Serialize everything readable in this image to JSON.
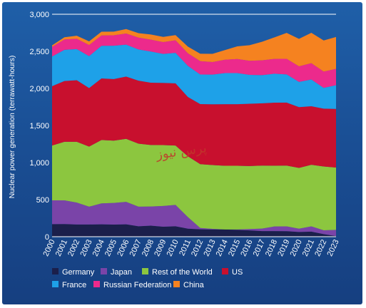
{
  "chart_data": {
    "type": "area",
    "stacked": true,
    "title": "",
    "xlabel": "",
    "ylabel": "Nuclear power generation (terrawatt-hours)",
    "ylim": [
      0,
      3000
    ],
    "y_ticks": [
      "0",
      "500",
      "1,000",
      "1,500",
      "2,000",
      "2,500",
      "3,000"
    ],
    "x": [
      "2000",
      "2001",
      "2002",
      "2003",
      "2004",
      "2005",
      "2006",
      "2007",
      "2008",
      "2009",
      "2010",
      "2011",
      "2012",
      "2013",
      "2014",
      "2015",
      "2016",
      "2017",
      "2018",
      "2019",
      "2020",
      "2021",
      "2022",
      "2023"
    ],
    "grid": false,
    "legend_position": "bottom",
    "series": [
      {
        "name": "Germany",
        "color": "#1b1f4b",
        "values": [
          170,
          171,
          165,
          165,
          167,
          163,
          167,
          141,
          149,
          135,
          141,
          108,
          100,
          97,
          97,
          92,
          85,
          76,
          76,
          75,
          64,
          69,
          35,
          8
        ]
      },
      {
        "name": "Japan",
        "color": "#7a44a8",
        "values": [
          320,
          319,
          295,
          240,
          282,
          293,
          303,
          264,
          258,
          280,
          288,
          156,
          18,
          9,
          0,
          5,
          18,
          33,
          62,
          64,
          44,
          71,
          52,
          85
        ]
      },
      {
        "name": "Rest of the World",
        "color": "#8cc63f",
        "values": [
          740,
          790,
          820,
          810,
          855,
          840,
          850,
          850,
          830,
          820,
          800,
          820,
          860,
          860,
          860,
          860,
          850,
          850,
          820,
          820,
          820,
          830,
          860,
          840
        ]
      },
      {
        "name": "US",
        "color": "#c8102e",
        "values": [
          800,
          820,
          830,
          790,
          830,
          830,
          840,
          850,
          840,
          840,
          840,
          800,
          810,
          820,
          830,
          830,
          840,
          840,
          850,
          850,
          820,
          790,
          780,
          790
        ]
      },
      {
        "name": "France",
        "color": "#1ea1e8",
        "values": [
          400,
          420,
          420,
          430,
          440,
          450,
          430,
          420,
          420,
          390,
          410,
          420,
          400,
          400,
          420,
          420,
          390,
          380,
          390,
          380,
          340,
          360,
          280,
          320
        ]
      },
      {
        "name": "Russian Federation",
        "color": "#ec2a8c",
        "values": [
          130,
          140,
          140,
          150,
          140,
          140,
          150,
          160,
          160,
          160,
          170,
          170,
          180,
          170,
          180,
          190,
          190,
          200,
          200,
          210,
          210,
          220,
          220,
          220
        ]
      },
      {
        "name": "China",
        "color": "#f58220",
        "values": [
          20,
          30,
          40,
          50,
          50,
          50,
          60,
          60,
          70,
          70,
          70,
          90,
          100,
          110,
          130,
          170,
          210,
          250,
          290,
          350,
          370,
          410,
          420,
          430
        ]
      }
    ],
    "legend_rows": [
      [
        "Germany",
        "Japan",
        "Rest of the World",
        "US"
      ],
      [
        "France",
        "Russian Federation",
        "China"
      ]
    ]
  },
  "watermark": "پرس نیوز"
}
